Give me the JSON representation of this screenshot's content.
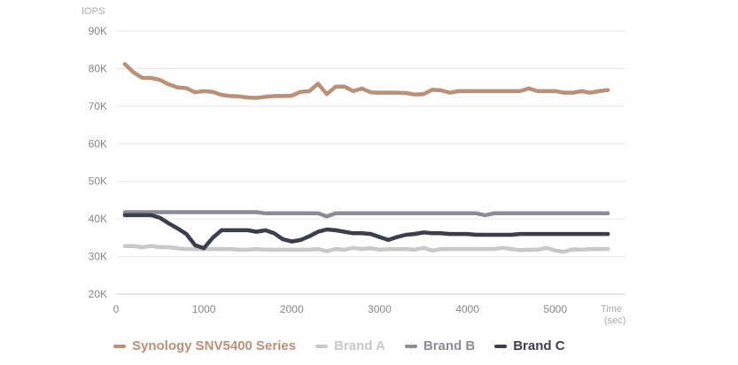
{
  "chart_data": {
    "type": "line",
    "ylabel": "IOPS",
    "xlabel": "Time\n(sec)",
    "xlim": [
      0,
      5800
    ],
    "ylim": [
      20000,
      90000
    ],
    "x_ticks": [
      0,
      1000,
      2000,
      3000,
      4000,
      5000
    ],
    "y_ticks": [
      20000,
      30000,
      40000,
      50000,
      60000,
      70000,
      80000,
      90000
    ],
    "y_tick_labels": [
      "20K",
      "30K",
      "40K",
      "50K",
      "60K",
      "70K",
      "80K",
      "90K"
    ],
    "grid": true,
    "legend": "bottom",
    "x": [
      100,
      200,
      300,
      400,
      500,
      600,
      700,
      800,
      900,
      1000,
      1100,
      1200,
      1300,
      1400,
      1500,
      1600,
      1700,
      1800,
      1900,
      2000,
      2100,
      2200,
      2300,
      2400,
      2500,
      2600,
      2700,
      2800,
      2900,
      3000,
      3100,
      3200,
      3300,
      3400,
      3500,
      3600,
      3700,
      3800,
      3900,
      4000,
      4100,
      4200,
      4300,
      4400,
      4500,
      4600,
      4700,
      4800,
      4900,
      5000,
      5100,
      5200,
      5300,
      5400,
      5500,
      5600
    ],
    "series": [
      {
        "name": "Synology SNV5400 Series",
        "color": "#b8917b",
        "values": [
          81200,
          79000,
          77500,
          77500,
          77000,
          75800,
          75000,
          74800,
          73700,
          74000,
          73800,
          73000,
          72700,
          72600,
          72300,
          72200,
          72500,
          72700,
          72700,
          72800,
          73800,
          74000,
          76000,
          73200,
          75200,
          75200,
          74000,
          74700,
          73700,
          73600,
          73600,
          73600,
          73500,
          73100,
          73200,
          74400,
          74200,
          73600,
          74000,
          74000,
          74000,
          74000,
          74000,
          74000,
          74000,
          74000,
          74700,
          74000,
          74000,
          74000,
          73600,
          73600,
          74000,
          73600,
          74000,
          74300
        ]
      },
      {
        "name": "Brand A",
        "color": "#c8c8c8",
        "values": [
          32800,
          32800,
          32500,
          32800,
          32500,
          32500,
          32200,
          32000,
          32000,
          32000,
          32000,
          32000,
          32000,
          31800,
          31800,
          32000,
          31800,
          31800,
          31800,
          31800,
          31800,
          31800,
          32000,
          31400,
          32000,
          31800,
          32300,
          32000,
          32200,
          31800,
          32000,
          32000,
          32000,
          31800,
          32300,
          31600,
          32000,
          32000,
          32000,
          32000,
          32000,
          32000,
          32000,
          32300,
          32000,
          31700,
          31800,
          31800,
          32300,
          31600,
          31300,
          31900,
          31800,
          32000,
          32000,
          32000
        ]
      },
      {
        "name": "Brand B",
        "color": "#8c8c95",
        "values": [
          41800,
          41800,
          41800,
          41800,
          41800,
          41800,
          41800,
          41800,
          41800,
          41800,
          41800,
          41800,
          41800,
          41800,
          41800,
          41800,
          41500,
          41500,
          41500,
          41500,
          41500,
          41500,
          41500,
          40700,
          41500,
          41500,
          41500,
          41500,
          41500,
          41500,
          41500,
          41500,
          41500,
          41500,
          41500,
          41500,
          41500,
          41500,
          41500,
          41500,
          41500,
          41000,
          41500,
          41500,
          41500,
          41500,
          41500,
          41500,
          41500,
          41500,
          41500,
          41500,
          41500,
          41500,
          41500,
          41500
        ]
      },
      {
        "name": "Brand C",
        "color": "#3c3f4a",
        "values": [
          41000,
          41000,
          41000,
          41000,
          40300,
          38800,
          37500,
          36000,
          33000,
          32200,
          35000,
          37000,
          37000,
          37000,
          37000,
          36600,
          37000,
          36200,
          34600,
          34000,
          34400,
          35400,
          36600,
          37200,
          37000,
          36600,
          36200,
          36200,
          36000,
          35200,
          34400,
          35200,
          35800,
          36000,
          36400,
          36200,
          36200,
          36000,
          36000,
          36000,
          35800,
          35800,
          35800,
          35800,
          35800,
          36000,
          36000,
          36000,
          36000,
          36000,
          36000,
          36000,
          36000,
          36000,
          36000,
          36000
        ]
      }
    ]
  }
}
